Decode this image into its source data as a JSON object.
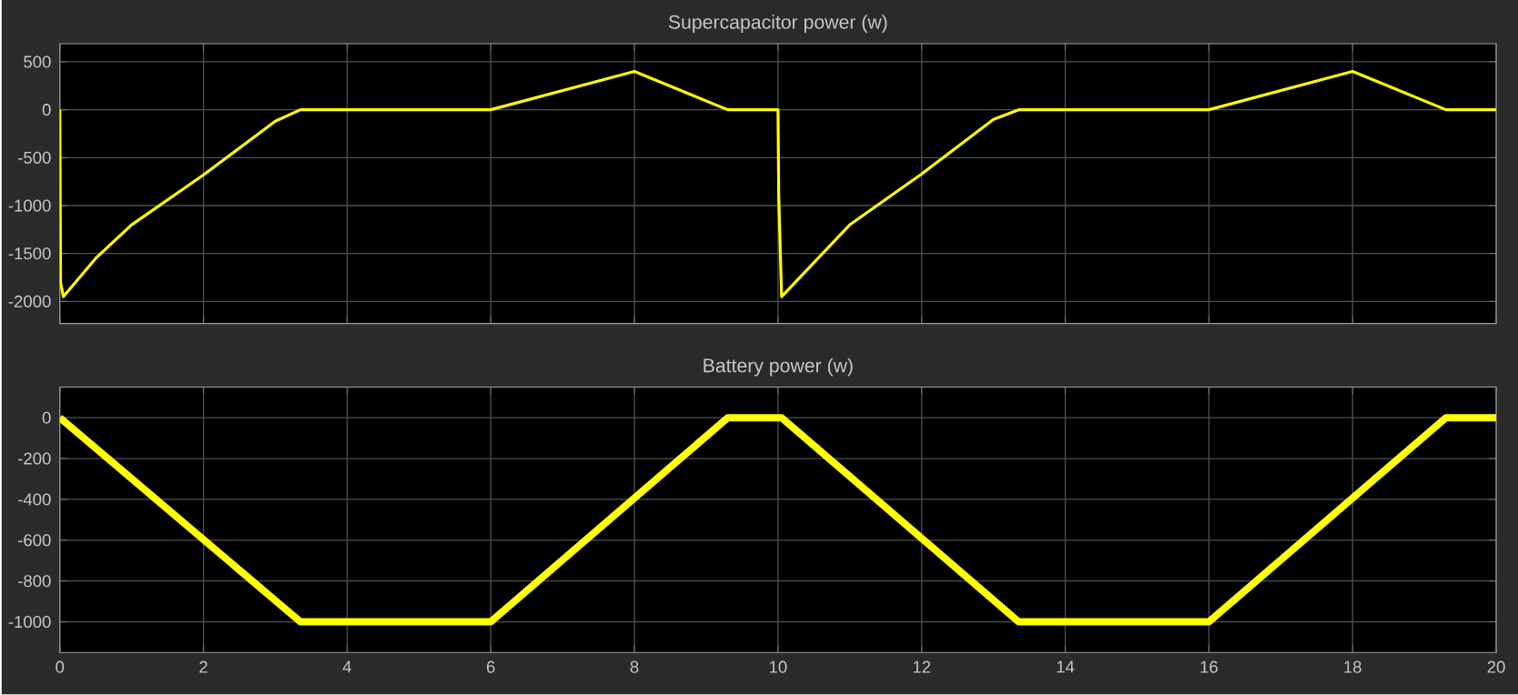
{
  "chart_data": [
    {
      "type": "line",
      "title": "Supercapacitor power (w)",
      "x": [
        0,
        0.01,
        0.05,
        0.5,
        1.0,
        2.0,
        3.0,
        3.35,
        6,
        8,
        9.3,
        10,
        10.01,
        10.05,
        11,
        12,
        13,
        13.35,
        16,
        18,
        19.3,
        20
      ],
      "values": [
        0,
        -1800,
        -1950,
        -1550,
        -1200,
        -680,
        -120,
        0,
        0,
        400,
        0,
        0,
        -900,
        -1950,
        -1200,
        -670,
        -100,
        0,
        0,
        400,
        0,
        0
      ],
      "color": "#ffff00",
      "xlim": [
        0,
        20
      ],
      "ylim": [
        -2230,
        690
      ],
      "xticks": [
        0,
        2,
        4,
        6,
        8,
        10,
        12,
        14,
        16,
        18,
        20
      ],
      "yticks": [
        -2000,
        -1500,
        -1000,
        -500,
        0,
        500
      ],
      "grid": true,
      "tick_labels": "y"
    },
    {
      "type": "line",
      "title": "Battery power (w)",
      "x": [
        0,
        3.35,
        6,
        9.3,
        10,
        10.05,
        13.35,
        16,
        19.3,
        20
      ],
      "values": [
        0,
        -1000,
        -1000,
        0,
        0,
        0,
        -1000,
        -1000,
        0,
        0
      ],
      "color": "#ffff00",
      "xlim": [
        0,
        20
      ],
      "ylim": [
        -1150,
        150
      ],
      "xticks": [
        0,
        2,
        4,
        6,
        8,
        10,
        12,
        14,
        16,
        18,
        20
      ],
      "yticks": [
        -1000,
        -800,
        -600,
        -400,
        -200,
        0
      ],
      "grid": true
    }
  ]
}
